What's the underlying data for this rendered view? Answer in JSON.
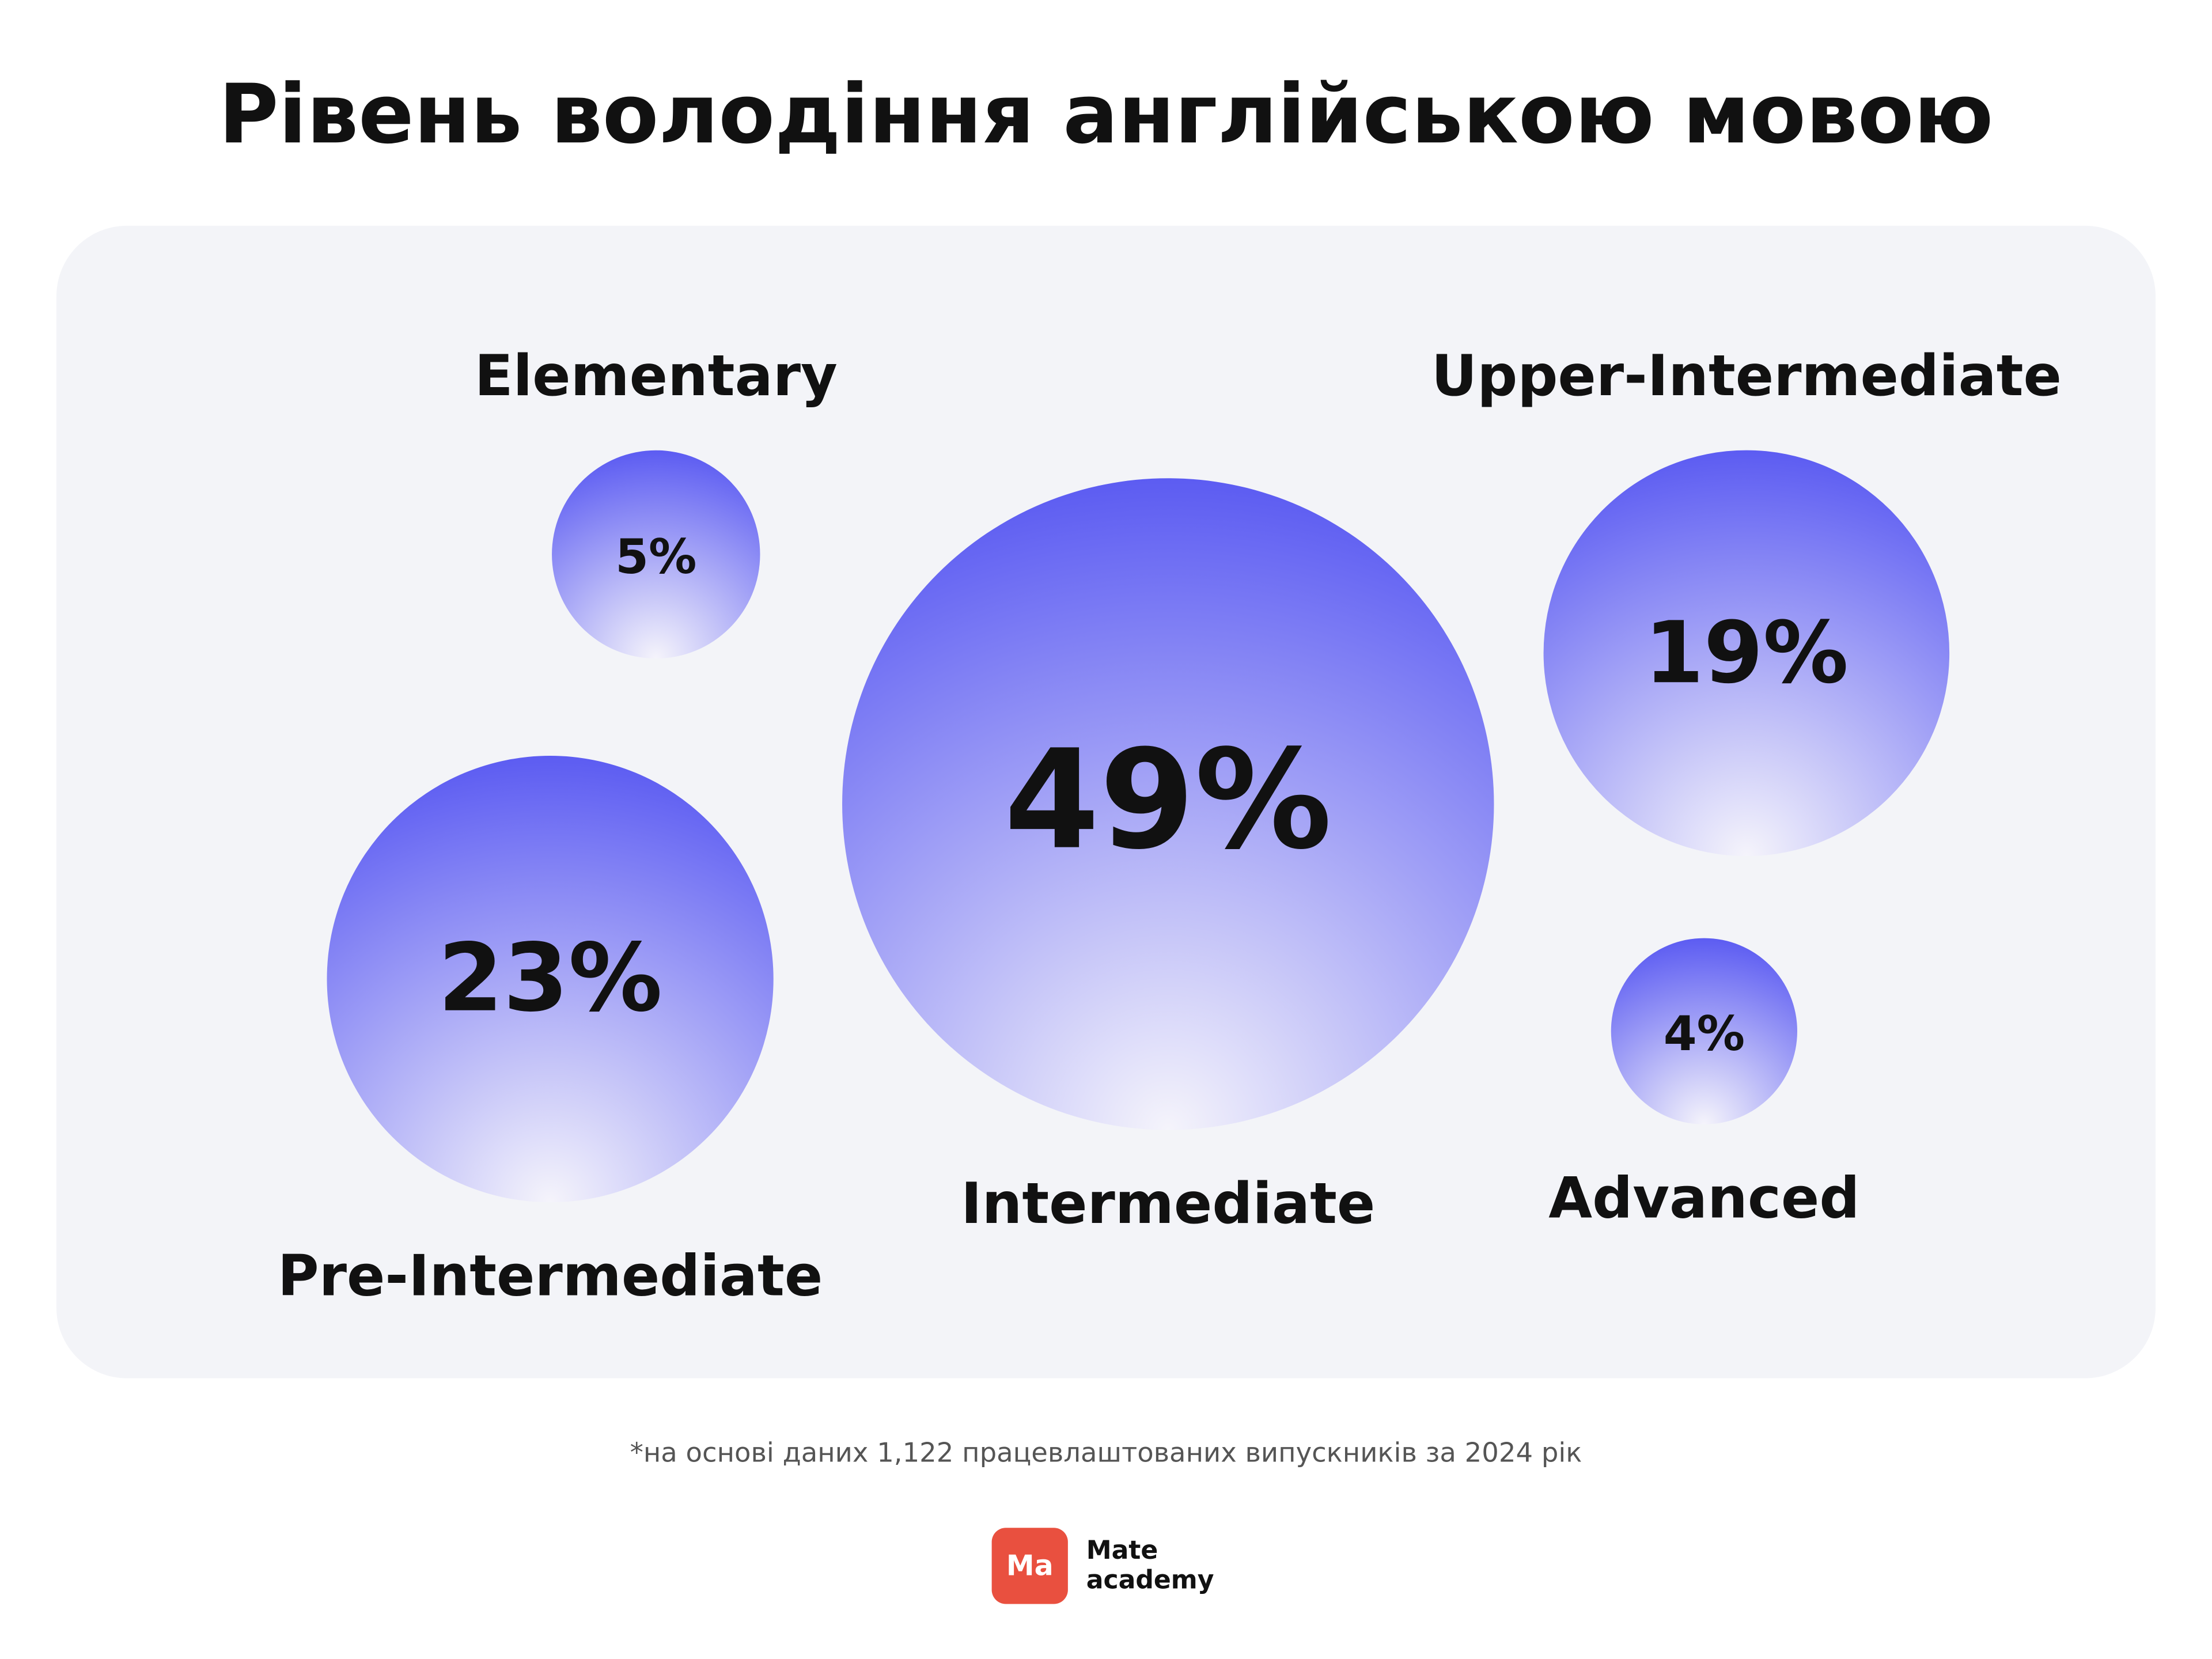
{
  "chart_data": {
    "type": "bubble",
    "title": "Рівень володіння англійською мовою",
    "categories": [
      "Elementary",
      "Pre-Intermediate",
      "Intermediate",
      "Upper-Intermediate",
      "Advanced"
    ],
    "values": [
      5,
      23,
      49,
      19,
      4
    ],
    "value_labels": [
      "5%",
      "23%",
      "49%",
      "19%",
      "4%"
    ],
    "color": "#5c5cf2",
    "footnote": "*на основі даних 1,122 працевлаштованих випускників за 2024 рік"
  },
  "logo": {
    "mark": "Ma",
    "line1": "Mate",
    "line2": "academy"
  }
}
